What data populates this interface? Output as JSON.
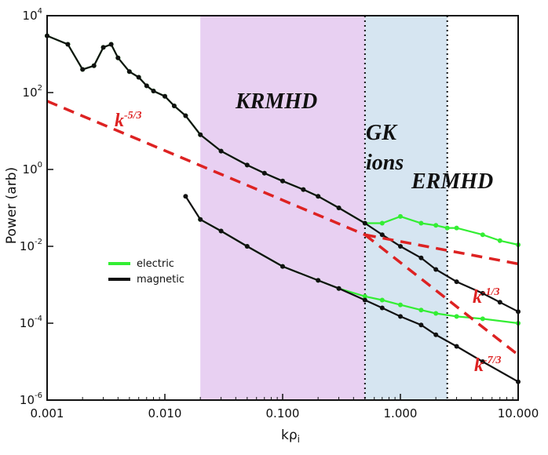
{
  "chart_data": {
    "type": "line",
    "xscale": "log",
    "yscale": "log",
    "xlim": [
      0.001,
      10.0
    ],
    "ylim_exponents": [
      -6,
      4
    ],
    "xlabel_main": "k",
    "xlabel_sym": "ρ",
    "xlabel_sub": "i",
    "ylabel": "Power (arb)",
    "x_ticks": [
      {
        "value": 0.001,
        "label": "0.001"
      },
      {
        "value": 0.01,
        "label": "0.010"
      },
      {
        "value": 0.1,
        "label": "0.100"
      },
      {
        "value": 1.0,
        "label": "1.000"
      },
      {
        "value": 10.0,
        "label": "10.000"
      }
    ],
    "y_ticks": [
      {
        "exp": 4,
        "base": "10",
        "sup": "4"
      },
      {
        "exp": 2,
        "base": "10",
        "sup": "2"
      },
      {
        "exp": 0,
        "base": "10",
        "sup": "0"
      },
      {
        "exp": -2,
        "base": "10",
        "sup": "-2"
      },
      {
        "exp": -4,
        "base": "10",
        "sup": "-4"
      },
      {
        "exp": -6,
        "base": "10",
        "sup": "-6"
      }
    ],
    "regions": [
      {
        "label": "KRMHD",
        "x_range": [
          0.02,
          0.5
        ],
        "color": "#e4c8f0"
      },
      {
        "label_lines": [
          "GK",
          "ions"
        ],
        "x_range": [
          0.5,
          2.5
        ],
        "color": "#cfe0ee"
      },
      {
        "label": "ERMHD",
        "x_range": [
          2.5,
          10.0
        ],
        "color": "#ffffff"
      }
    ],
    "vertical_markers": [
      0.5,
      2.5
    ],
    "legend": {
      "position": "middle-left",
      "entries": [
        {
          "name": "electric",
          "color": "#33ee33"
        },
        {
          "name": "magnetic",
          "color": "#111111"
        }
      ]
    },
    "series": [
      {
        "name": "electric",
        "color": "#33ee33",
        "x": [
          0.001,
          0.0015,
          0.002,
          0.0025,
          0.003,
          0.0035,
          0.004,
          0.005,
          0.006,
          0.007,
          0.008,
          0.01,
          0.012,
          0.015,
          0.02,
          0.03,
          0.05,
          0.07,
          0.1,
          0.15,
          0.2,
          0.3,
          0.5,
          0.7,
          1.0,
          1.5,
          2.0,
          2.5,
          3.0,
          5.0,
          7.0,
          10.0
        ],
        "y": [
          3000,
          1800,
          400,
          500,
          1500,
          1800,
          800,
          350,
          250,
          150,
          110,
          80,
          45,
          25,
          8,
          3,
          1.3,
          0.8,
          0.5,
          0.3,
          0.2,
          0.1,
          0.04,
          0.04,
          0.06,
          0.04,
          0.035,
          0.03,
          0.03,
          0.02,
          0.014,
          0.011
        ]
      },
      {
        "name": "magnetic",
        "color": "#111111",
        "x": [
          0.001,
          0.0015,
          0.002,
          0.0025,
          0.003,
          0.0035,
          0.004,
          0.005,
          0.006,
          0.007,
          0.008,
          0.01,
          0.012,
          0.015,
          0.02,
          0.03,
          0.05,
          0.07,
          0.1,
          0.15,
          0.2,
          0.3,
          0.5,
          0.7,
          1.0,
          1.5,
          2.0,
          3.0,
          5.0,
          7.0,
          10.0
        ],
        "y": [
          3000,
          1800,
          400,
          500,
          1500,
          1800,
          800,
          350,
          250,
          150,
          110,
          80,
          45,
          25,
          8,
          3,
          1.3,
          0.8,
          0.5,
          0.3,
          0.2,
          0.1,
          0.04,
          0.02,
          0.01,
          0.005,
          0.0025,
          0.0012,
          0.0006,
          0.00035,
          0.0002
        ]
      },
      {
        "name": "electric-lower",
        "color": "#33ee33",
        "x": [
          0.02,
          0.03,
          0.05,
          0.1,
          0.2,
          0.3,
          0.5,
          0.7,
          1.0,
          1.5,
          2.0,
          3.0,
          5.0,
          10.0
        ],
        "y": [
          0.05,
          0.025,
          0.01,
          0.003,
          0.0013,
          0.0008,
          0.0005,
          0.0004,
          0.0003,
          0.00022,
          0.00018,
          0.00015,
          0.00013,
          0.0001
        ]
      },
      {
        "name": "magnetic-lower",
        "color": "#111111",
        "x": [
          0.015,
          0.02,
          0.03,
          0.05,
          0.1,
          0.2,
          0.3,
          0.5,
          0.7,
          1.0,
          1.5,
          2.0,
          3.0,
          5.0,
          10.0
        ],
        "y": [
          0.2,
          0.05,
          0.025,
          0.01,
          0.003,
          0.0013,
          0.0008,
          0.0004,
          0.00025,
          0.00015,
          9e-05,
          5e-05,
          2.5e-05,
          1e-05,
          3e-06
        ]
      }
    ],
    "reference_lines": [
      {
        "label": "k",
        "sup": "-5/3",
        "x": [
          0.001,
          0.5
        ],
        "y": [
          60,
          0.02
        ],
        "color": "#dd2222"
      },
      {
        "label": "k",
        "sup": "-1/3",
        "x": [
          0.5,
          10.0
        ],
        "y": [
          0.02,
          0.0035
        ],
        "color": "#dd2222"
      },
      {
        "label": "k",
        "sup": "-7/3",
        "x": [
          0.5,
          10.0
        ],
        "y": [
          0.02,
          1.5e-05
        ],
        "color": "#dd2222"
      }
    ]
  }
}
